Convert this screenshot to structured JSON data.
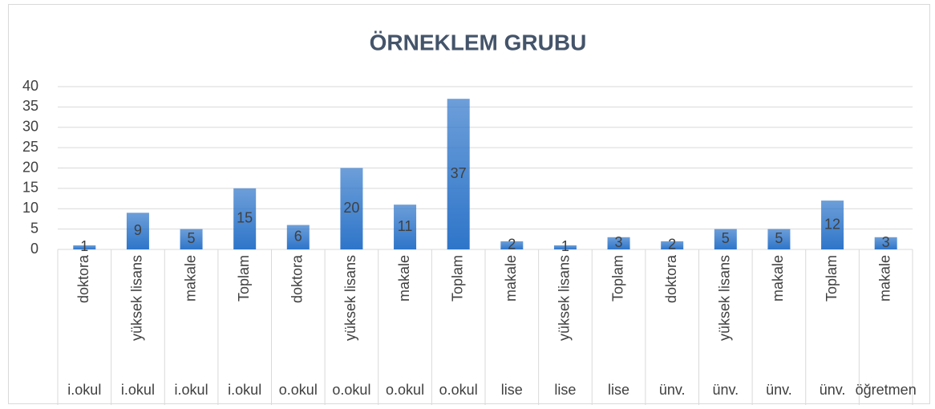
{
  "chart_data": {
    "type": "bar",
    "title": "ÖRNEKLEM GRUBU",
    "categories": [
      "doktora",
      "yüksek lisans",
      "makale",
      "Toplam",
      "doktora",
      "yüksek lisans",
      "makale",
      "Toplam",
      "makale",
      "yüksek lisans",
      "Toplam",
      "doktora",
      "yüksek lisans",
      "makale",
      "Toplam",
      "makale"
    ],
    "category_groups": [
      "i.okul",
      "i.okul",
      "i.okul",
      "i.okul",
      "o.okul",
      "o.okul",
      "o.okul",
      "o.okul",
      "lise",
      "lise",
      "lise",
      "ünv.",
      "ünv.",
      "ünv.",
      "ünv.",
      "öğretmen"
    ],
    "values": [
      1,
      9,
      5,
      15,
      6,
      20,
      11,
      37,
      2,
      1,
      3,
      2,
      5,
      5,
      12,
      3
    ],
    "color": "#2e75c9",
    "ylim": [
      0,
      40
    ],
    "yticks": [
      0,
      5,
      10,
      15,
      20,
      25,
      30,
      35,
      40
    ],
    "grid": true
  }
}
